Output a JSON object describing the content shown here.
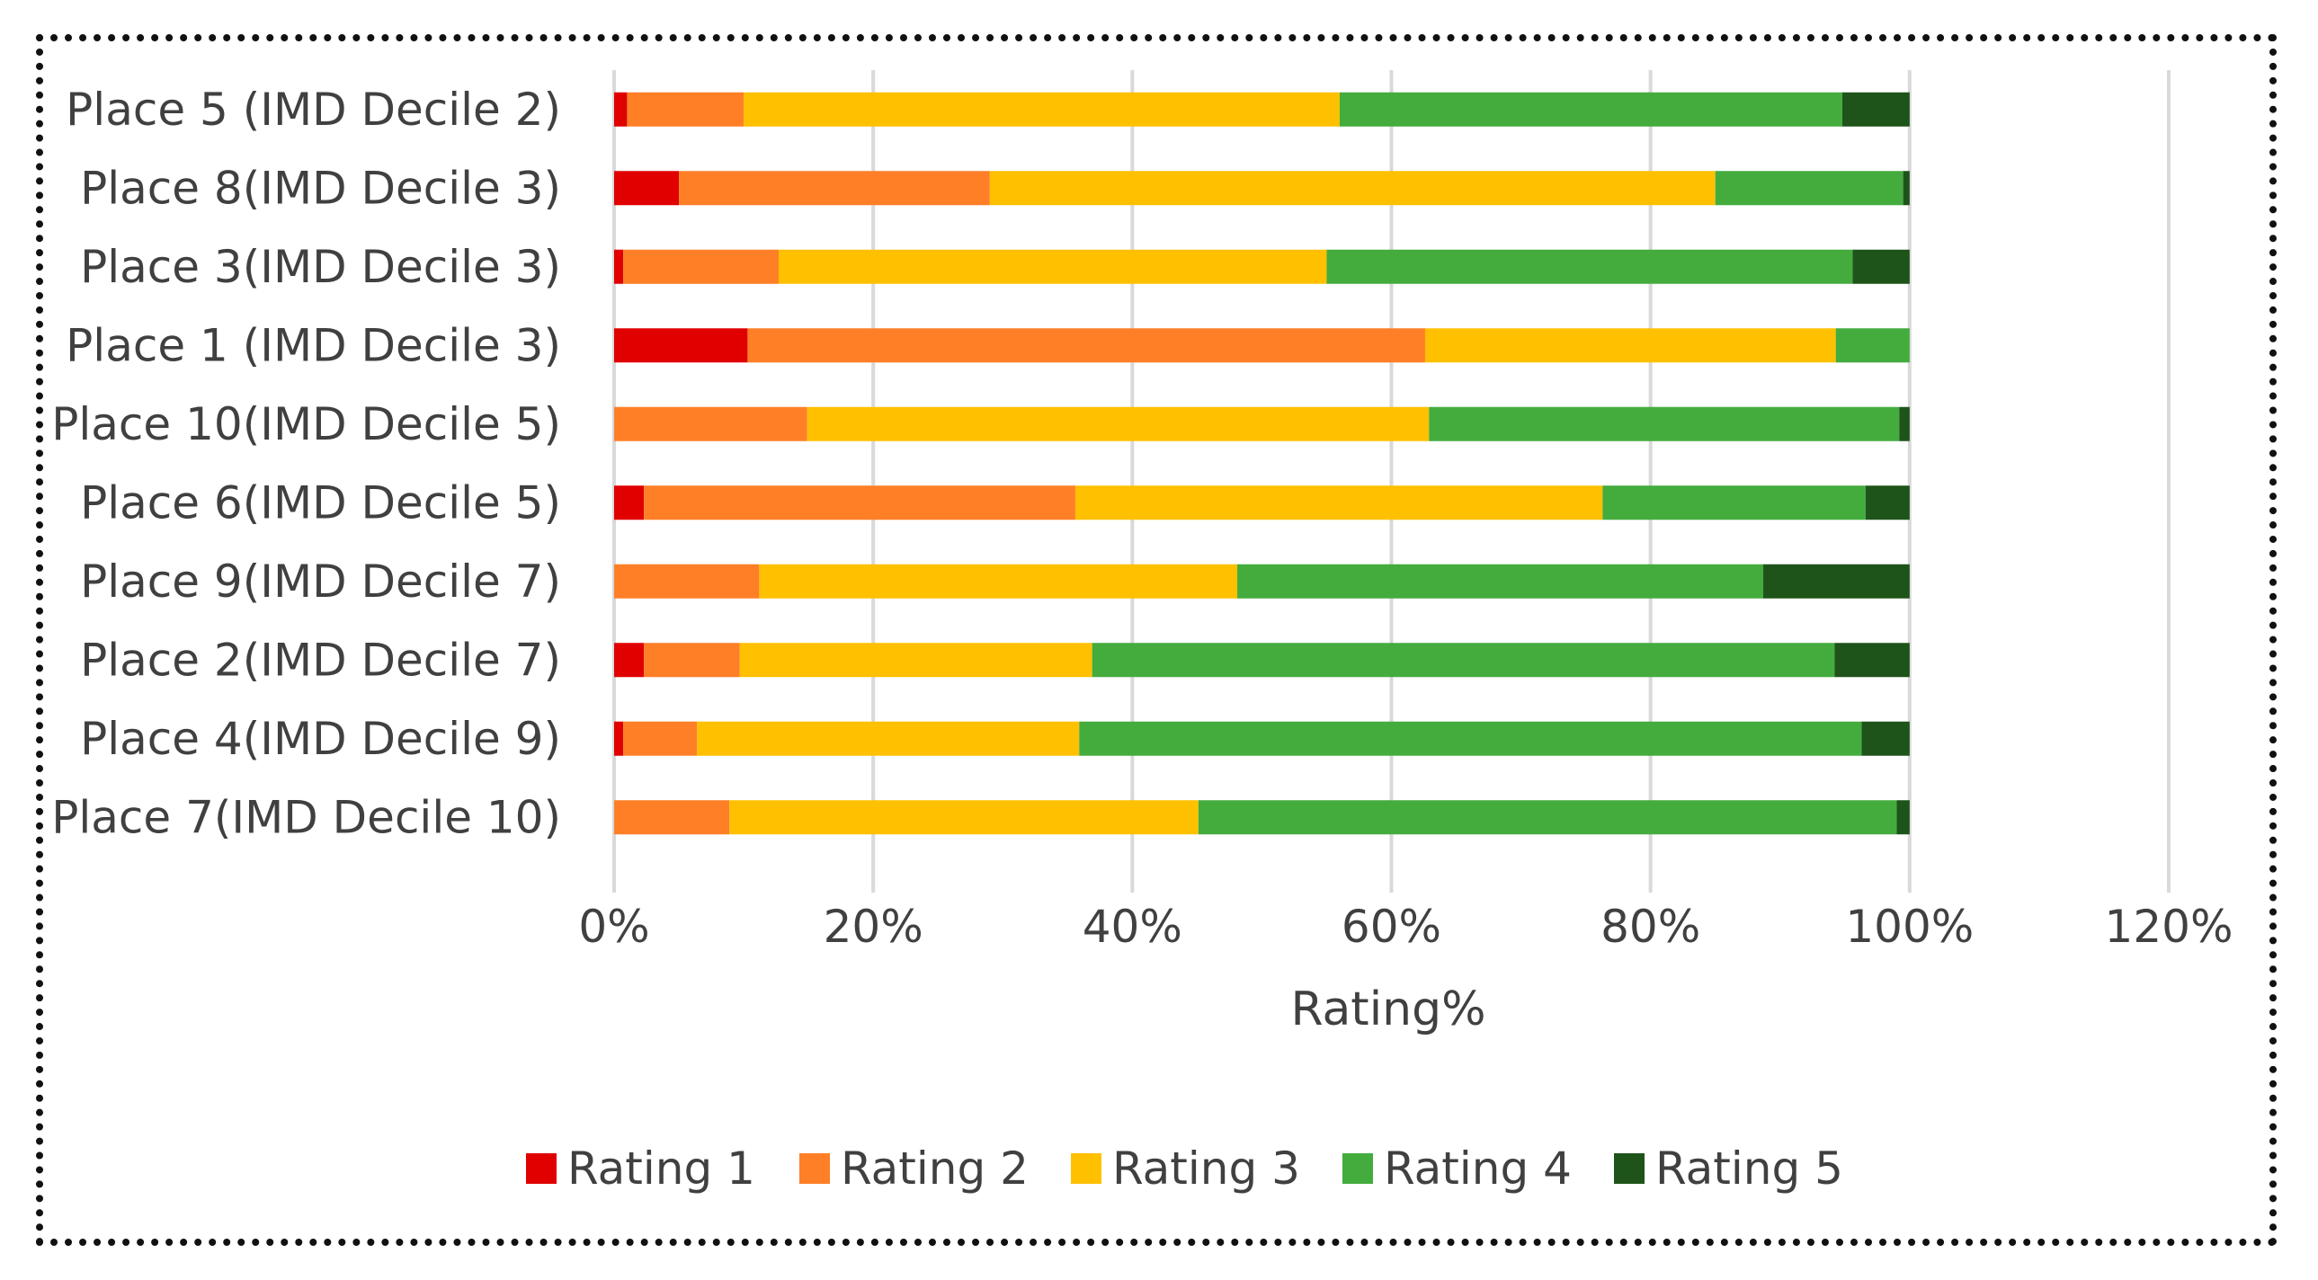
{
  "chart_data": {
    "type": "bar",
    "orientation": "horizontal",
    "stacked": true,
    "title": "",
    "xlabel": "Rating%",
    "ylabel": "",
    "xlim": [
      0,
      120
    ],
    "x_ticks": [
      0,
      20,
      40,
      60,
      80,
      100,
      120
    ],
    "x_tick_labels": [
      "0%",
      "20%",
      "40%",
      "60%",
      "80%",
      "100%",
      "120%"
    ],
    "grid": "vertical",
    "legend_position": "bottom",
    "categories": [
      "Place 5 (IMD Decile 2)",
      "Place 8(IMD Decile 3)",
      "Place 3(IMD Decile 3)",
      "Place 1 (IMD Decile 3)",
      "Place 10(IMD Decile 5)",
      "Place 6(IMD Decile 5)",
      "Place 9(IMD Decile 7)",
      "Place 2(IMD Decile 7)",
      "Place 4(IMD Decile 9)",
      "Place 7(IMD Decile 10)"
    ],
    "series": [
      {
        "name": "Rating 1",
        "color": "#E00000",
        "values": [
          1,
          5,
          0.7,
          10.3,
          0,
          2.3,
          0,
          2.3,
          0.7,
          0
        ]
      },
      {
        "name": "Rating 2",
        "color": "#FF7F27",
        "values": [
          9,
          24,
          12,
          52.3,
          14.9,
          33.3,
          11.2,
          7.4,
          5.7,
          8.9
        ]
      },
      {
        "name": "Rating 3",
        "color": "#FFC000",
        "values": [
          46,
          56,
          42.3,
          31.7,
          48,
          40.7,
          36.9,
          27.2,
          29.5,
          36.2
        ]
      },
      {
        "name": "Rating 4",
        "color": "#43AC3D",
        "values": [
          38.8,
          14.5,
          40.6,
          5.7,
          36.3,
          20.3,
          40.6,
          57.3,
          60.4,
          53.9
        ]
      },
      {
        "name": "Rating 5",
        "color": "#1E5419",
        "values": [
          5.2,
          0.5,
          4.4,
          0,
          0.8,
          3.4,
          11.3,
          5.8,
          3.7,
          1
        ]
      }
    ]
  }
}
